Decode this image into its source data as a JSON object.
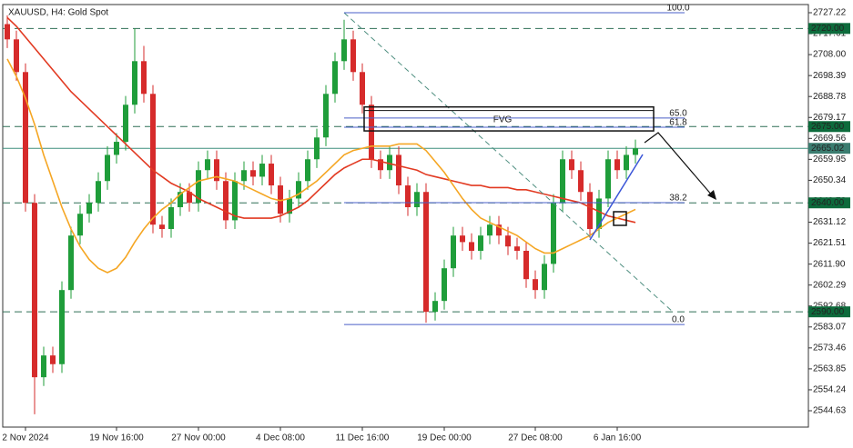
{
  "chart_data": {
    "type": "candlestick",
    "title": "XAUUSD, H4: Gold Spot",
    "categories": [
      null,
      null,
      "2 Nov 2024",
      null,
      null,
      null,
      null,
      null,
      null,
      null,
      null,
      null,
      "19 Nov 16:00",
      null,
      null,
      null,
      null,
      null,
      null,
      null,
      null,
      "27 Nov 00:00",
      null,
      null,
      null,
      null,
      null,
      null,
      null,
      null,
      "4 Dec 08:00",
      null,
      null,
      null,
      null,
      null,
      null,
      null,
      null,
      "11 Dec 16:00",
      null,
      null,
      null,
      null,
      null,
      null,
      null,
      null,
      "19 Dec 00:00",
      null,
      null,
      null,
      null,
      null,
      null,
      null,
      null,
      null,
      "27 Dec 08:00",
      null,
      null,
      null,
      null,
      null,
      null,
      null,
      null,
      "6 Jan 16:00",
      null,
      null
    ],
    "opens": [
      2722,
      2715,
      2700,
      2640,
      2560,
      2570,
      2566,
      2600,
      2625,
      2635,
      2640,
      2650,
      2662,
      2668,
      2685,
      2705,
      2690,
      2630,
      2628,
      2638,
      2645,
      2640,
      2655,
      2660,
      2650,
      2632,
      2650,
      2655,
      2652,
      2658,
      2648,
      2635,
      2642,
      2650,
      2660,
      2670,
      2690,
      2705,
      2715,
      2700,
      2685,
      2660,
      2655,
      2662,
      2648,
      2638,
      2645,
      2590,
      2595,
      2610,
      2625,
      2622,
      2618,
      2625,
      2630,
      2625,
      2620,
      2618,
      2605,
      2600,
      2612,
      2640,
      2660,
      2655,
      2645,
      2628,
      2642,
      2660,
      2655,
      2662
    ],
    "highs": [
      2726,
      2719,
      2704,
      2644,
      2574,
      2574,
      2604,
      2629,
      2639,
      2644,
      2654,
      2666,
      2672,
      2689,
      2720,
      2712,
      2694,
      2634,
      2642,
      2649,
      2649,
      2659,
      2664,
      2664,
      2654,
      2654,
      2659,
      2659,
      2662,
      2662,
      2652,
      2646,
      2654,
      2664,
      2674,
      2694,
      2709,
      2724,
      2719,
      2704,
      2689,
      2664,
      2666,
      2666,
      2652,
      2649,
      2649,
      2599,
      2614,
      2629,
      2629,
      2626,
      2629,
      2634,
      2634,
      2629,
      2624,
      2622,
      2609,
      2616,
      2644,
      2664,
      2664,
      2659,
      2649,
      2646,
      2664,
      2664,
      2666,
      2669
    ],
    "lows": [
      2711,
      2696,
      2636,
      2543,
      2556,
      2562,
      2562,
      2596,
      2621,
      2631,
      2636,
      2646,
      2658,
      2664,
      2681,
      2686,
      2626,
      2624,
      2624,
      2634,
      2636,
      2636,
      2651,
      2646,
      2628,
      2628,
      2646,
      2648,
      2648,
      2644,
      2631,
      2631,
      2638,
      2646,
      2656,
      2666,
      2686,
      2701,
      2696,
      2681,
      2656,
      2651,
      2651,
      2644,
      2634,
      2634,
      2585,
      2586,
      2591,
      2606,
      2618,
      2614,
      2614,
      2621,
      2621,
      2616,
      2614,
      2601,
      2596,
      2596,
      2608,
      2636,
      2651,
      2641,
      2624,
      2624,
      2638,
      2651,
      2651,
      2658
    ],
    "closes": [
      2715,
      2700,
      2640,
      2560,
      2570,
      2566,
      2600,
      2625,
      2635,
      2640,
      2650,
      2662,
      2668,
      2685,
      2705,
      2690,
      2630,
      2628,
      2638,
      2645,
      2640,
      2655,
      2660,
      2650,
      2632,
      2650,
      2655,
      2652,
      2658,
      2648,
      2635,
      2642,
      2650,
      2660,
      2670,
      2690,
      2705,
      2715,
      2700,
      2685,
      2660,
      2655,
      2662,
      2648,
      2638,
      2645,
      2590,
      2595,
      2610,
      2625,
      2622,
      2618,
      2625,
      2630,
      2625,
      2620,
      2618,
      2605,
      2600,
      2612,
      2640,
      2660,
      2655,
      2645,
      2628,
      2642,
      2660,
      2655,
      2662,
      2665.02
    ],
    "up_color": "#1f9d3a",
    "down_color": "#d62b2b",
    "moving_averages": [
      {
        "color": "#e23a22",
        "values": [
          2725,
          2721,
          2716,
          2711,
          2706,
          2701,
          2696,
          2691,
          2687,
          2683,
          2679,
          2675,
          2671,
          2667,
          2663,
          2659,
          2655,
          2652,
          2649,
          2647,
          2645,
          2642,
          2640,
          2638,
          2636,
          2634,
          2633,
          2633,
          2633,
          2633,
          2634,
          2636,
          2638,
          2641,
          2645,
          2649,
          2653,
          2656,
          2658,
          2660,
          2660,
          2659,
          2658,
          2657,
          2656,
          2655,
          2653,
          2652,
          2651,
          2650,
          2649,
          2648,
          2648,
          2647,
          2647,
          2647,
          2646,
          2646,
          2645,
          2644,
          2643,
          2642,
          2641,
          2640,
          2638,
          2636,
          2634,
          2633,
          2632,
          2631
        ]
      },
      {
        "color": "#f5a623",
        "values": [
          2706,
          2698,
          2688,
          2676,
          2662,
          2650,
          2638,
          2628,
          2620,
          2614,
          2610,
          2608,
          2610,
          2615,
          2622,
          2628,
          2633,
          2637,
          2640,
          2644,
          2647,
          2650,
          2651,
          2652,
          2651,
          2650,
          2648,
          2646,
          2644,
          2642,
          2641,
          2642,
          2644,
          2647,
          2650,
          2654,
          2658,
          2662,
          2664,
          2665,
          2666,
          2666,
          2666,
          2667,
          2667,
          2667,
          2664,
          2659,
          2654,
          2648,
          2642,
          2637,
          2633,
          2631,
          2629,
          2627,
          2625,
          2622,
          2619,
          2617,
          2617,
          2619,
          2621,
          2623,
          2625,
          2628,
          2631,
          2633,
          2635,
          2637
        ]
      }
    ],
    "ylim": [
      2537.13,
      2730.97
    ],
    "yticks": [
      2727.22,
      2717.61,
      {
        "value": 2708,
        "label": "2708.00"
      },
      2698.39,
      2688.78,
      2679.17,
      2669.56,
      2659.95,
      2650.34,
      2640.73,
      2631.12,
      2621.51,
      {
        "value": 2611.9,
        "label": "2611.90"
      },
      2602.29,
      2592.68,
      2583.07,
      2573.46,
      2563.85,
      2554.24,
      2544.63
    ],
    "levels": [
      {
        "value": 2720,
        "label": "2720.00"
      },
      {
        "value": 2675,
        "label": "2675.00"
      },
      {
        "value": 2640,
        "label": "2640.00"
      },
      {
        "value": 2590,
        "label": "2590.00"
      }
    ],
    "current_price": 2665.02,
    "fib_levels": [
      {
        "label": "100.0",
        "price": 2727.2
      },
      {
        "label": "65.0",
        "price": 2678.9
      },
      {
        "label": "61.8",
        "price": 2674.7
      },
      {
        "label": "38.2",
        "price": 2640.1
      },
      {
        "label": "0.0",
        "price": 2584.2
      }
    ],
    "fvg": {
      "label": "FVG",
      "top": 2684,
      "bottom": 2673
    }
  }
}
